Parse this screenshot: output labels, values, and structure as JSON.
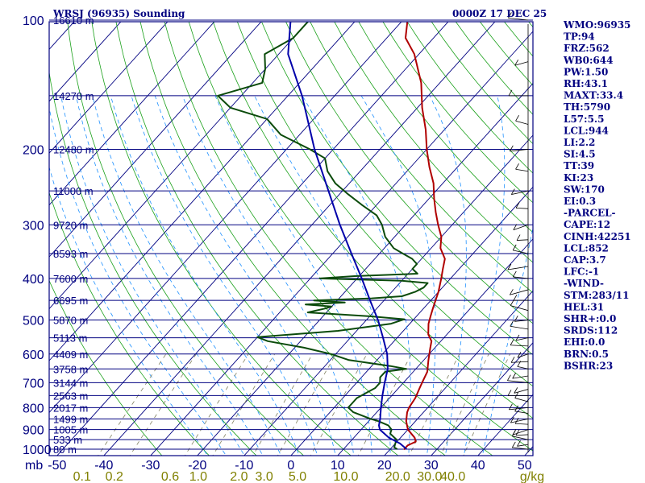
{
  "header": {
    "station": "WRSJ (96935) Sounding",
    "time": "0000Z 17 DEC 25"
  },
  "chart_data": {
    "type": "line",
    "title": "WRSJ (96935) Sounding",
    "subtitle": "0000Z 17 DEC 25",
    "xlabel": "",
    "ylabel": "mb",
    "temperature_axis": {
      "ticks": [
        "-50",
        "-40",
        "-30",
        "-20",
        "-10",
        "0",
        "10",
        "20",
        "30",
        "40",
        "50"
      ],
      "range": [
        -50,
        50
      ]
    },
    "pressure_axis": {
      "ticks": [
        "100",
        "200",
        "300",
        "400",
        "500",
        "600",
        "700",
        "800",
        "900",
        "1000"
      ],
      "range": [
        100,
        1000
      ],
      "scale": "log"
    },
    "mixing_ratio_axis": {
      "unit": "g/kg",
      "ticks": [
        "0.1",
        "0.2",
        "0.6",
        "1.0",
        "2.0",
        "3.0",
        "5.0",
        "10.0",
        "20.0",
        "30.0",
        "40.0"
      ]
    },
    "height_labels": [
      {
        "p": 100,
        "label": "16610 m"
      },
      {
        "p": 150,
        "label": "14270 m"
      },
      {
        "p": 200,
        "label": "12480 m"
      },
      {
        "p": 250,
        "label": "11000 m"
      },
      {
        "p": 300,
        "label": "9720 m"
      },
      {
        "p": 350,
        "label": "8593 m"
      },
      {
        "p": 400,
        "label": "7600 m"
      },
      {
        "p": 450,
        "label": "6695 m"
      },
      {
        "p": 500,
        "label": "5870 m"
      },
      {
        "p": 550,
        "label": "5113 m"
      },
      {
        "p": 600,
        "label": "4409 m"
      },
      {
        "p": 650,
        "label": "3758 m"
      },
      {
        "p": 700,
        "label": "3144 m"
      },
      {
        "p": 750,
        "label": "2563 m"
      },
      {
        "p": 800,
        "label": "2017 m"
      },
      {
        "p": 850,
        "label": "1499 m"
      },
      {
        "p": 900,
        "label": "1005 m"
      },
      {
        "p": 950,
        "label": "533 m"
      },
      {
        "p": 1000,
        "label": "80 m"
      }
    ],
    "series": [
      {
        "color": "#b00000",
        "points": [
          [
            1002,
            23
          ],
          [
            980,
            23
          ],
          [
            960,
            24
          ],
          [
            940,
            23
          ],
          [
            900,
            20
          ],
          [
            860,
            18
          ],
          [
            820,
            16.5
          ],
          [
            800,
            16
          ],
          [
            760,
            15.5
          ],
          [
            720,
            14.5
          ],
          [
            700,
            14
          ],
          [
            660,
            13
          ],
          [
            620,
            11
          ],
          [
            580,
            9
          ],
          [
            560,
            8
          ],
          [
            540,
            6
          ],
          [
            510,
            4
          ],
          [
            490,
            3
          ],
          [
            470,
            2
          ],
          [
            450,
            1
          ],
          [
            430,
            0
          ],
          [
            400,
            -2
          ],
          [
            380,
            -3.5
          ],
          [
            360,
            -5
          ],
          [
            340,
            -8
          ],
          [
            320,
            -10
          ],
          [
            300,
            -13
          ],
          [
            280,
            -16
          ],
          [
            260,
            -19
          ],
          [
            240,
            -22
          ],
          [
            220,
            -26
          ],
          [
            200,
            -30
          ],
          [
            180,
            -34
          ],
          [
            160,
            -39
          ],
          [
            140,
            -44
          ],
          [
            120,
            -51
          ],
          [
            110,
            -56
          ],
          [
            100,
            -59
          ]
        ]
      },
      {
        "color": "#0b4b0b",
        "points": [
          [
            1000,
            21.5
          ],
          [
            990,
            20.5
          ],
          [
            970,
            20
          ],
          [
            950,
            19.5
          ],
          [
            920,
            17
          ],
          [
            900,
            16.5
          ],
          [
            880,
            15
          ],
          [
            860,
            12
          ],
          [
            850,
            10
          ],
          [
            820,
            5
          ],
          [
            800,
            3
          ],
          [
            780,
            3
          ],
          [
            760,
            3
          ],
          [
            740,
            4
          ],
          [
            720,
            5
          ],
          [
            700,
            5
          ],
          [
            680,
            4
          ],
          [
            660,
            4
          ],
          [
            650,
            8
          ],
          [
            640,
            4
          ],
          [
            620,
            -6
          ],
          [
            600,
            -11
          ],
          [
            580,
            -18
          ],
          [
            560,
            -27
          ],
          [
            548,
            -30
          ],
          [
            530,
            -14
          ],
          [
            510,
            -4
          ],
          [
            498,
            -2
          ],
          [
            490,
            -10
          ],
          [
            480,
            -24
          ],
          [
            470,
            -21
          ],
          [
            465,
            -20
          ],
          [
            460,
            -26
          ],
          [
            455,
            -18
          ],
          [
            450,
            -25
          ],
          [
            445,
            -13
          ],
          [
            440,
            -7
          ],
          [
            430,
            -5
          ],
          [
            420,
            -4
          ],
          [
            410,
            -4
          ],
          [
            405,
            -10
          ],
          [
            400,
            -28
          ],
          [
            395,
            -21
          ],
          [
            390,
            -8
          ],
          [
            380,
            -10
          ],
          [
            370,
            -10
          ],
          [
            360,
            -12
          ],
          [
            350,
            -15
          ],
          [
            340,
            -18
          ],
          [
            320,
            -22
          ],
          [
            300,
            -25
          ],
          [
            285,
            -28
          ],
          [
            270,
            -33
          ],
          [
            255,
            -38
          ],
          [
            240,
            -43
          ],
          [
            225,
            -47
          ],
          [
            210,
            -50
          ],
          [
            200,
            -55
          ],
          [
            185,
            -64
          ],
          [
            170,
            -70
          ],
          [
            160,
            -80
          ],
          [
            150,
            -85
          ],
          [
            140,
            -78
          ],
          [
            130,
            -80
          ],
          [
            120,
            -83
          ],
          [
            110,
            -80
          ],
          [
            100,
            -80
          ]
        ]
      },
      {
        "color": "#0000aa",
        "points": [
          [
            1000,
            23.5
          ],
          [
            970,
            21
          ],
          [
            940,
            17.5
          ],
          [
            900,
            14
          ],
          [
            880,
            13
          ],
          [
            850,
            12
          ],
          [
            800,
            10
          ],
          [
            750,
            8
          ],
          [
            700,
            6
          ],
          [
            650,
            4
          ],
          [
            600,
            1
          ],
          [
            550,
            -3
          ],
          [
            500,
            -7.5
          ],
          [
            450,
            -13
          ],
          [
            400,
            -19
          ],
          [
            350,
            -26
          ],
          [
            300,
            -34
          ],
          [
            250,
            -43
          ],
          [
            200,
            -54
          ],
          [
            150,
            -67
          ],
          [
            120,
            -78
          ],
          [
            100,
            -84
          ]
        ]
      }
    ]
  },
  "indices": [
    "WMO:96935",
    "TP:94",
    "FRZ:562",
    "WB0:644",
    "PW:1.50",
    "RH:43.1",
    "MAXT:33.4",
    "TH:5790",
    "L57:5.5",
    "LCL:944",
    "LI:2.2",
    "SI:4.5",
    "TT:39",
    "KI:23",
    "SW:170",
    "EI:0.3",
    "-PARCEL-",
    "CAPE:12",
    "CINH:42251",
    "LCL:852",
    "CAP:3.7",
    "LFC:-1",
    "-WIND-",
    "STM:283/11",
    "HEL:31",
    "SHR+:0.0",
    "SRDS:112",
    "EHI:0.0",
    "BRN:0.5",
    "BSHR:23"
  ],
  "colors": {
    "frame": "#000080",
    "isotherm": "#000080",
    "dry_adiabat": "#1aa01a",
    "moist_adiabat": "#1e90ff",
    "mixing_ratio": "#808060",
    "temperature": "#b00000",
    "dewpoint": "#0b4b0b",
    "parcel": "#0000aa"
  }
}
